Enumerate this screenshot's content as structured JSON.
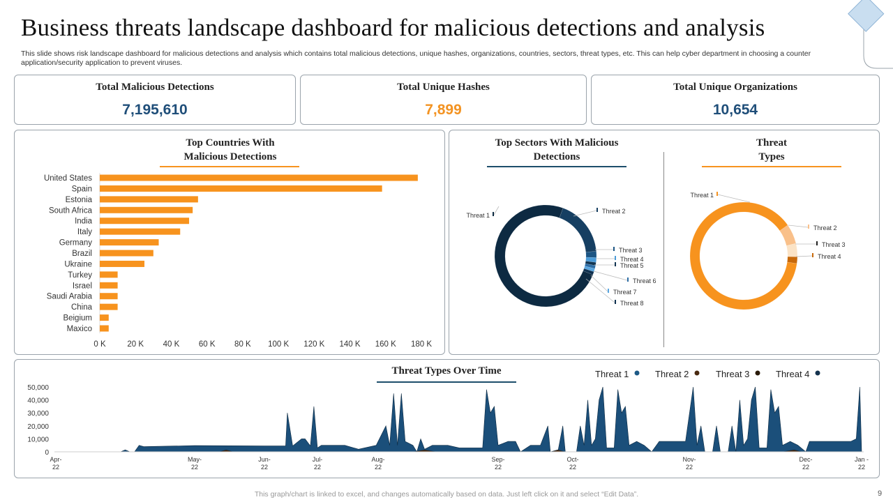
{
  "title": "Business threats landscape dashboard for malicious detections and analysis",
  "description": "This slide shows risk landscape dashboard for malicious detections and analysis which contains total malicious detections, unique hashes, organizations, countries, sectors, threat types, etc. This can help cyber department in choosing a counter application/security application to prevent viruses.",
  "kpis": [
    {
      "label": "Total Malicious Detections",
      "value": "7,195,610",
      "color": "#1f4e79"
    },
    {
      "label": "Total Unique  Hashes",
      "value": "7,899",
      "color": "#f39322"
    },
    {
      "label": "Total Unique  Organizations",
      "value": "10,654",
      "color": "#1f4e79"
    }
  ],
  "colors": {
    "orange": "#f7931e",
    "navy": "#0d2a42",
    "accent_line": "#1d4e6b"
  },
  "chart_data": [
    {
      "type": "bar",
      "orientation": "horizontal",
      "title_line1": "Top Countries With",
      "title_line2": "Malicious Detections",
      "categories": [
        "United States",
        "Spain",
        "Estonia",
        "South Africa",
        "India",
        "Italy",
        "Germany",
        "Brazil",
        "Ukraine",
        "Turkey",
        "Israel",
        "Saudi Arabia",
        "China",
        "Beigium",
        "Maxico"
      ],
      "values": [
        178000,
        158000,
        55000,
        52000,
        50000,
        45000,
        33000,
        30000,
        25000,
        10000,
        10000,
        10000,
        10000,
        5000,
        5000
      ],
      "xlim": [
        0,
        180000
      ],
      "xticks": [
        "0 K",
        "20 K",
        "40 K",
        "60 K",
        "80 K",
        "100 K",
        "120 K",
        "140 K",
        "160 K",
        "180 K"
      ],
      "color": "#f7931e",
      "grid": false
    },
    {
      "type": "pie",
      "donut": true,
      "title_line1": "Top Sectors With Malicious",
      "title_line2": "Detections",
      "labels": [
        "Threat 1",
        "Threat 2",
        "Threat 3",
        "Threat 4",
        "Threat 5",
        "Threat 6",
        "Threat 7",
        "Threat 8"
      ],
      "values": [
        74.5,
        18,
        2,
        1.5,
        1,
        1,
        1,
        1
      ],
      "colors": [
        "#0d2a42",
        "#163f62",
        "#1c5584",
        "#4a9bd8",
        "#123552",
        "#2e6ea6",
        "#5aa6e0",
        "#0f3150"
      ]
    },
    {
      "type": "pie",
      "donut": true,
      "title_line1": "Threat",
      "title_line2": "Types",
      "labels": [
        "Threat 1",
        "Threat 2",
        "Threat 3",
        "Threat 4"
      ],
      "values": [
        88,
        6,
        4,
        2
      ],
      "colors": [
        "#f7931e",
        "#f9c08a",
        "#fbe3c6",
        "#c8690a"
      ]
    },
    {
      "type": "area",
      "title": "Threat Types Over Time",
      "legend": [
        "Threat 1",
        "Threat 2",
        "Threat 3",
        "Threat 4"
      ],
      "legend_colors": [
        "#1d5a86",
        "#4a2a10",
        "#2a1a0a",
        "#14324e"
      ],
      "legend_placement": "top-right",
      "ylim": [
        0,
        50000
      ],
      "yticks": [
        "0",
        "10,000",
        "20,000",
        "30,000",
        "40,000",
        "50,000"
      ],
      "xticks": [
        {
          "date": "2022-04-01",
          "label": [
            "Apr-",
            "22"
          ]
        },
        {
          "date": "2022-05-01",
          "label": [
            "May-",
            "22"
          ]
        },
        {
          "date": "2022-06-01",
          "label": [
            "Jun-",
            "22"
          ]
        },
        {
          "date": "2022-07-01",
          "label": [
            "Jul-",
            "22"
          ]
        },
        {
          "date": "2022-08-01",
          "label": [
            "Aug-",
            "22"
          ]
        },
        {
          "date": "2022-09-01",
          "label": [
            "Sep-",
            "22"
          ]
        },
        {
          "date": "2022-10-01",
          "label": [
            "Oct-",
            "22"
          ]
        },
        {
          "date": "2022-11-01",
          "label": [
            "Nov-",
            "22"
          ]
        },
        {
          "date": "2022-12-01",
          "label": [
            "Dec-",
            "22"
          ]
        },
        {
          "date": "2023-01-01",
          "label": [
            "Jan -",
            "22"
          ]
        }
      ],
      "series": [
        {
          "name": "Threat 1",
          "color": "#1b4f7a",
          "points": [
            [
              "2022-04-01",
              0
            ],
            [
              "2022-04-14",
              0
            ],
            [
              "2022-04-15",
              0
            ],
            [
              "2022-04-16",
              1500
            ],
            [
              "2022-04-17",
              0
            ],
            [
              "2022-04-18",
              0
            ],
            [
              "2022-04-19",
              5000
            ],
            [
              "2022-04-20",
              4000
            ],
            [
              "2022-05-01",
              4800
            ],
            [
              "2022-06-01",
              4500
            ],
            [
              "2022-06-13",
              4500
            ],
            [
              "2022-06-14",
              30000
            ],
            [
              "2022-06-17",
              4500
            ],
            [
              "2022-06-22",
              10000
            ],
            [
              "2022-06-24",
              10000
            ],
            [
              "2022-06-27",
              4500
            ],
            [
              "2022-06-29",
              35000
            ],
            [
              "2022-07-01",
              3000
            ],
            [
              "2022-07-03",
              5000
            ],
            [
              "2022-07-15",
              5000
            ],
            [
              "2022-07-22",
              2000
            ],
            [
              "2022-07-31",
              5000
            ],
            [
              "2022-08-03",
              20000
            ],
            [
              "2022-08-04",
              5000
            ],
            [
              "2022-08-05",
              45000
            ],
            [
              "2022-08-06",
              5000
            ],
            [
              "2022-08-07",
              45000
            ],
            [
              "2022-08-08",
              8000
            ],
            [
              "2022-08-10",
              5000
            ],
            [
              "2022-08-11",
              0
            ],
            [
              "2022-08-12",
              10000
            ],
            [
              "2022-08-13",
              2000
            ],
            [
              "2022-08-15",
              5000
            ],
            [
              "2022-08-19",
              5000
            ],
            [
              "2022-08-22",
              3000
            ],
            [
              "2022-08-28",
              3000
            ],
            [
              "2022-08-29",
              48000
            ],
            [
              "2022-08-30",
              30000
            ],
            [
              "2022-08-31",
              35000
            ],
            [
              "2022-09-01",
              5000
            ],
            [
              "2022-09-05",
              8000
            ],
            [
              "2022-09-08",
              8000
            ],
            [
              "2022-09-10",
              0
            ],
            [
              "2022-09-14",
              5000
            ],
            [
              "2022-09-18",
              5000
            ],
            [
              "2022-09-21",
              20000
            ],
            [
              "2022-09-22",
              0
            ],
            [
              "2022-09-25",
              0
            ],
            [
              "2022-09-27",
              20000
            ],
            [
              "2022-09-28",
              0
            ],
            [
              "2022-10-02",
              0
            ],
            [
              "2022-10-03",
              20000
            ],
            [
              "2022-10-04",
              5000
            ],
            [
              "2022-10-05",
              40000
            ],
            [
              "2022-10-06",
              5000
            ],
            [
              "2022-10-07",
              10000
            ],
            [
              "2022-10-08",
              40000
            ],
            [
              "2022-10-09",
              50000
            ],
            [
              "2022-10-10",
              3000
            ],
            [
              "2022-10-12",
              3000
            ],
            [
              "2022-10-13",
              48000
            ],
            [
              "2022-10-14",
              30000
            ],
            [
              "2022-10-15",
              35000
            ],
            [
              "2022-10-16",
              5000
            ],
            [
              "2022-10-18",
              8000
            ],
            [
              "2022-10-20",
              5000
            ],
            [
              "2022-10-22",
              0
            ],
            [
              "2022-10-24",
              8000
            ],
            [
              "2022-10-31",
              8000
            ],
            [
              "2022-11-02",
              50000
            ],
            [
              "2022-11-03",
              5000
            ],
            [
              "2022-11-04",
              20000
            ],
            [
              "2022-11-05",
              0
            ],
            [
              "2022-11-07",
              0
            ],
            [
              "2022-11-08",
              20000
            ],
            [
              "2022-11-09",
              0
            ],
            [
              "2022-11-11",
              0
            ],
            [
              "2022-11-12",
              20000
            ],
            [
              "2022-11-13",
              0
            ],
            [
              "2022-11-14",
              40000
            ],
            [
              "2022-11-15",
              5000
            ],
            [
              "2022-11-16",
              10000
            ],
            [
              "2022-11-17",
              40000
            ],
            [
              "2022-11-18",
              50000
            ],
            [
              "2022-11-19",
              3000
            ],
            [
              "2022-11-21",
              3000
            ],
            [
              "2022-11-22",
              48000
            ],
            [
              "2022-11-23",
              30000
            ],
            [
              "2022-11-24",
              35000
            ],
            [
              "2022-11-25",
              5000
            ],
            [
              "2022-11-27",
              8000
            ],
            [
              "2022-11-29",
              5000
            ],
            [
              "2022-12-01",
              0
            ],
            [
              "2022-12-03",
              8000
            ],
            [
              "2022-12-26",
              8000
            ],
            [
              "2022-12-29",
              10000
            ],
            [
              "2022-12-31",
              50000
            ],
            [
              "2023-01-01",
              0
            ]
          ]
        },
        {
          "name": "Threat 2",
          "color": "#4a2a10",
          "points": [
            [
              "2022-04-01",
              0
            ],
            [
              "2022-05-12",
              0
            ],
            [
              "2022-05-15",
              1500
            ],
            [
              "2022-05-18",
              0
            ],
            [
              "2022-08-10",
              0
            ],
            [
              "2022-08-13",
              1500
            ],
            [
              "2022-08-16",
              0
            ],
            [
              "2022-09-22",
              0
            ],
            [
              "2022-09-25",
              1500
            ],
            [
              "2022-09-28",
              0
            ],
            [
              "2022-11-25",
              0
            ],
            [
              "2022-11-28",
              1500
            ],
            [
              "2022-11-30",
              0
            ],
            [
              "2023-01-01",
              0
            ]
          ]
        }
      ]
    }
  ],
  "footer": "This graph/chart is linked to excel,  and changes automatically based on data. Just left click on it and select “Edit Data”.",
  "page_number": "9"
}
